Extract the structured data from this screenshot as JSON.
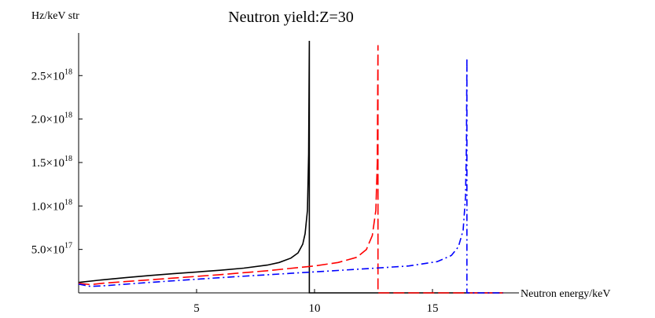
{
  "chart_data": {
    "type": "line",
    "title": "Neutron yield:Z=30",
    "xlabel": "Neutron energy/keV",
    "ylabel": "Hz/keV str",
    "xlim": [
      0,
      18
    ],
    "ylim": [
      0,
      2.9e+18
    ],
    "grid": false,
    "legend": "none",
    "x_ticks": [
      {
        "value": 5,
        "label": "5"
      },
      {
        "value": 10,
        "label": "10"
      },
      {
        "value": 15,
        "label": "15"
      }
    ],
    "y_ticks": [
      {
        "value": 5e+17,
        "mantissa": "5.0",
        "exponent": "17"
      },
      {
        "value": 1e+18,
        "mantissa": "1.0",
        "exponent": "18"
      },
      {
        "value": 1.5e+18,
        "mantissa": "1.5",
        "exponent": "18"
      },
      {
        "value": 2e+18,
        "mantissa": "2.0",
        "exponent": "18"
      },
      {
        "value": 2.5e+18,
        "mantissa": "2.5",
        "exponent": "18"
      }
    ],
    "series": [
      {
        "color": "#000000",
        "dash": "solid",
        "points": [
          [
            0,
            1.2e+17
          ],
          [
            1,
            1.5e+17
          ],
          [
            2,
            1.75e+17
          ],
          [
            3,
            2e+17
          ],
          [
            4,
            2.2e+17
          ],
          [
            5,
            2.4e+17
          ],
          [
            6,
            2.6e+17
          ],
          [
            7,
            2.85e+17
          ],
          [
            8,
            3.2e+17
          ],
          [
            8.5,
            3.5e+17
          ],
          [
            9,
            4e+17
          ],
          [
            9.3,
            4.6e+17
          ],
          [
            9.5,
            5.6e+17
          ],
          [
            9.6,
            6.8e+17
          ],
          [
            9.7,
            9.5e+17
          ],
          [
            9.75,
            1.6e+18
          ],
          [
            9.78,
            2.9e+18
          ],
          [
            9.78,
            0
          ],
          [
            18,
            0
          ]
        ]
      },
      {
        "color": "#ff0000",
        "dash": "dashed",
        "points": [
          [
            0,
            1.1e+17
          ],
          [
            0.5,
            9.5e+16
          ],
          [
            1,
            1.1e+17
          ],
          [
            2,
            1.3e+17
          ],
          [
            4,
            1.7e+17
          ],
          [
            6,
            2.1e+17
          ],
          [
            8,
            2.55e+17
          ],
          [
            10,
            3.1e+17
          ],
          [
            11,
            3.5e+17
          ],
          [
            11.8,
            4.1e+17
          ],
          [
            12.2,
            5e+17
          ],
          [
            12.45,
            6.6e+17
          ],
          [
            12.6,
            9.5e+17
          ],
          [
            12.66,
            1.5e+18
          ],
          [
            12.69,
            2.85e+18
          ],
          [
            12.69,
            0
          ],
          [
            18,
            0
          ]
        ]
      },
      {
        "color": "#0000ff",
        "dash": "dash-dot",
        "points": [
          [
            0,
            1e+17
          ],
          [
            0.5,
            7.5e+16
          ],
          [
            1,
            8e+16
          ],
          [
            3,
            1.2e+17
          ],
          [
            6,
            1.75e+17
          ],
          [
            9,
            2.25e+17
          ],
          [
            12,
            2.75e+17
          ],
          [
            14,
            3.1e+17
          ],
          [
            15.2,
            3.6e+17
          ],
          [
            15.8,
            4.3e+17
          ],
          [
            16.1,
            5.3e+17
          ],
          [
            16.3,
            7.2e+17
          ],
          [
            16.4,
            1.1e+18
          ],
          [
            16.44,
            1.7e+18
          ],
          [
            16.46,
            2.7e+18
          ],
          [
            16.46,
            0
          ],
          [
            18,
            0
          ]
        ]
      }
    ]
  }
}
